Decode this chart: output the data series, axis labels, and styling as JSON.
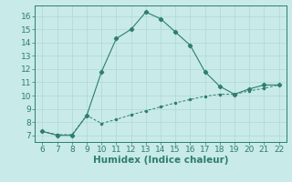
{
  "line1_x": [
    6,
    7,
    8,
    9,
    10,
    11,
    12,
    13,
    14,
    15,
    16,
    17,
    18,
    19,
    20,
    21,
    22
  ],
  "line1_y": [
    7.3,
    7.0,
    7.0,
    8.5,
    11.8,
    14.3,
    15.0,
    16.3,
    15.8,
    14.8,
    13.8,
    11.8,
    10.7,
    10.1,
    10.5,
    10.8,
    10.8
  ],
  "line2_x": [
    6,
    7,
    8,
    9,
    10,
    11,
    12,
    13,
    14,
    15,
    16,
    17,
    18,
    19,
    20,
    21,
    22
  ],
  "line2_y": [
    7.3,
    7.05,
    7.05,
    8.5,
    7.9,
    8.2,
    8.55,
    8.85,
    9.15,
    9.45,
    9.7,
    9.95,
    10.1,
    10.1,
    10.35,
    10.55,
    10.8
  ],
  "line_color": "#2e7d6e",
  "bg_color": "#c8eae8",
  "grid_color": "#b0d8d4",
  "xlabel": "Humidex (Indice chaleur)",
  "xlim": [
    5.5,
    22.5
  ],
  "ylim": [
    6.5,
    16.8
  ],
  "xticks": [
    6,
    7,
    8,
    9,
    10,
    11,
    12,
    13,
    14,
    15,
    16,
    17,
    18,
    19,
    20,
    21,
    22
  ],
  "yticks": [
    7,
    8,
    9,
    10,
    11,
    12,
    13,
    14,
    15,
    16
  ],
  "tick_fontsize": 6.5,
  "xlabel_fontsize": 7.5
}
